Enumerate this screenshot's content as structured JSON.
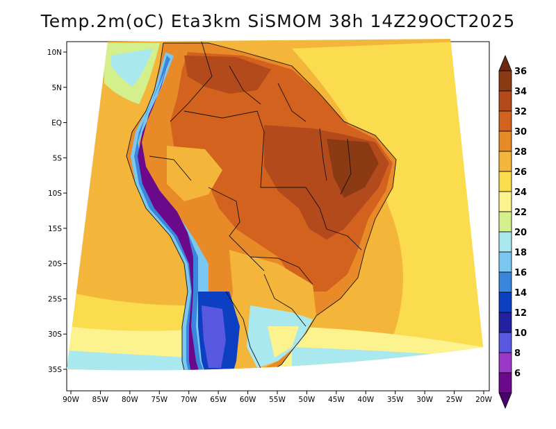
{
  "title": "Temp.2m(oC) Eta3km SiSMOM 38h 14Z29OCT2025",
  "map": {
    "lon_ticks": [
      "90W",
      "85W",
      "80W",
      "75W",
      "70W",
      "65W",
      "60W",
      "55W",
      "50W",
      "45W",
      "40W",
      "35W",
      "30W",
      "25W",
      "20W"
    ],
    "lat_ticks": [
      "10N",
      "5N",
      "EQ",
      "5S",
      "10S",
      "15S",
      "20S",
      "25S",
      "30S",
      "35S"
    ]
  },
  "colorbar": {
    "labels": [
      "36",
      "34",
      "32",
      "30",
      "28",
      "26",
      "24",
      "22",
      "20",
      "18",
      "16",
      "14",
      "12",
      "10",
      "8",
      "6"
    ],
    "colors": [
      "#6b2a10",
      "#8c3a14",
      "#b24a1c",
      "#d2621e",
      "#e98a28",
      "#f4b63a",
      "#fadc4e",
      "#fcf28e",
      "#d4f08c",
      "#a8e8ee",
      "#7ac8f0",
      "#3a86dc",
      "#0c3fc2",
      "#2222a0",
      "#5858e0",
      "#9a36c8",
      "#6a0a8a",
      "#4c0070"
    ]
  },
  "colors": {
    "ocean_warm": "#fadc4e",
    "ocean_hot": "#f4b63a",
    "ocean_cool": "#a8e8ee",
    "land_hot": "#d2621e",
    "land_very_hot": "#b24a1c",
    "andes_cold": "#3a86dc",
    "andes_coldest": "#6a0a8a"
  }
}
